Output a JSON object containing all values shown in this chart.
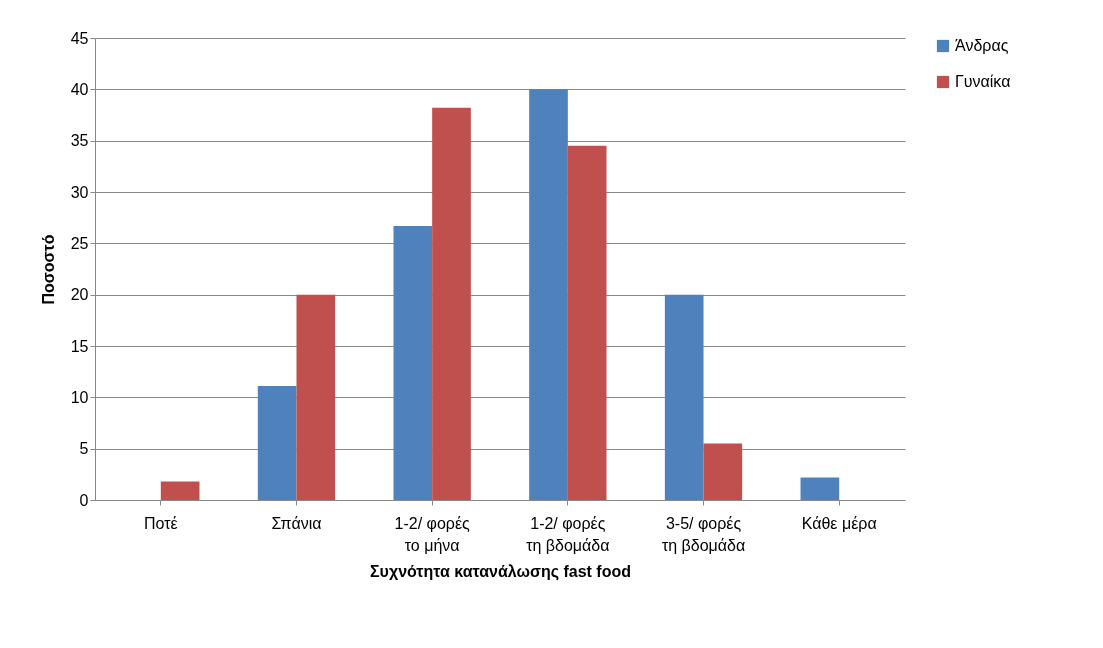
{
  "chart_data": {
    "type": "bar",
    "xlabel": "Συχνότητα κατανάλωσης fast food",
    "ylabel": "Ποσοστό",
    "categories": [
      "Ποτέ",
      "Σπάνια",
      "1-2/ φορές το μήνα",
      "1-2/ φορές τη βδομάδα",
      "3-5/ φορές τη βδομάδα",
      "Κάθε μέρα"
    ],
    "series": [
      {
        "name": "Άνδρας",
        "color": "#4f81bd",
        "values": [
          0,
          11.1,
          26.7,
          40,
          20,
          2.2
        ]
      },
      {
        "name": "Γυναίκα",
        "color": "#c0504d",
        "values": [
          1.8,
          20,
          38.2,
          34.5,
          5.5,
          0
        ]
      }
    ],
    "ylim": [
      0,
      45
    ],
    "yticks": [
      0,
      5,
      10,
      15,
      20,
      25,
      30,
      35,
      40,
      45
    ],
    "grid": "y",
    "legend": "right"
  }
}
